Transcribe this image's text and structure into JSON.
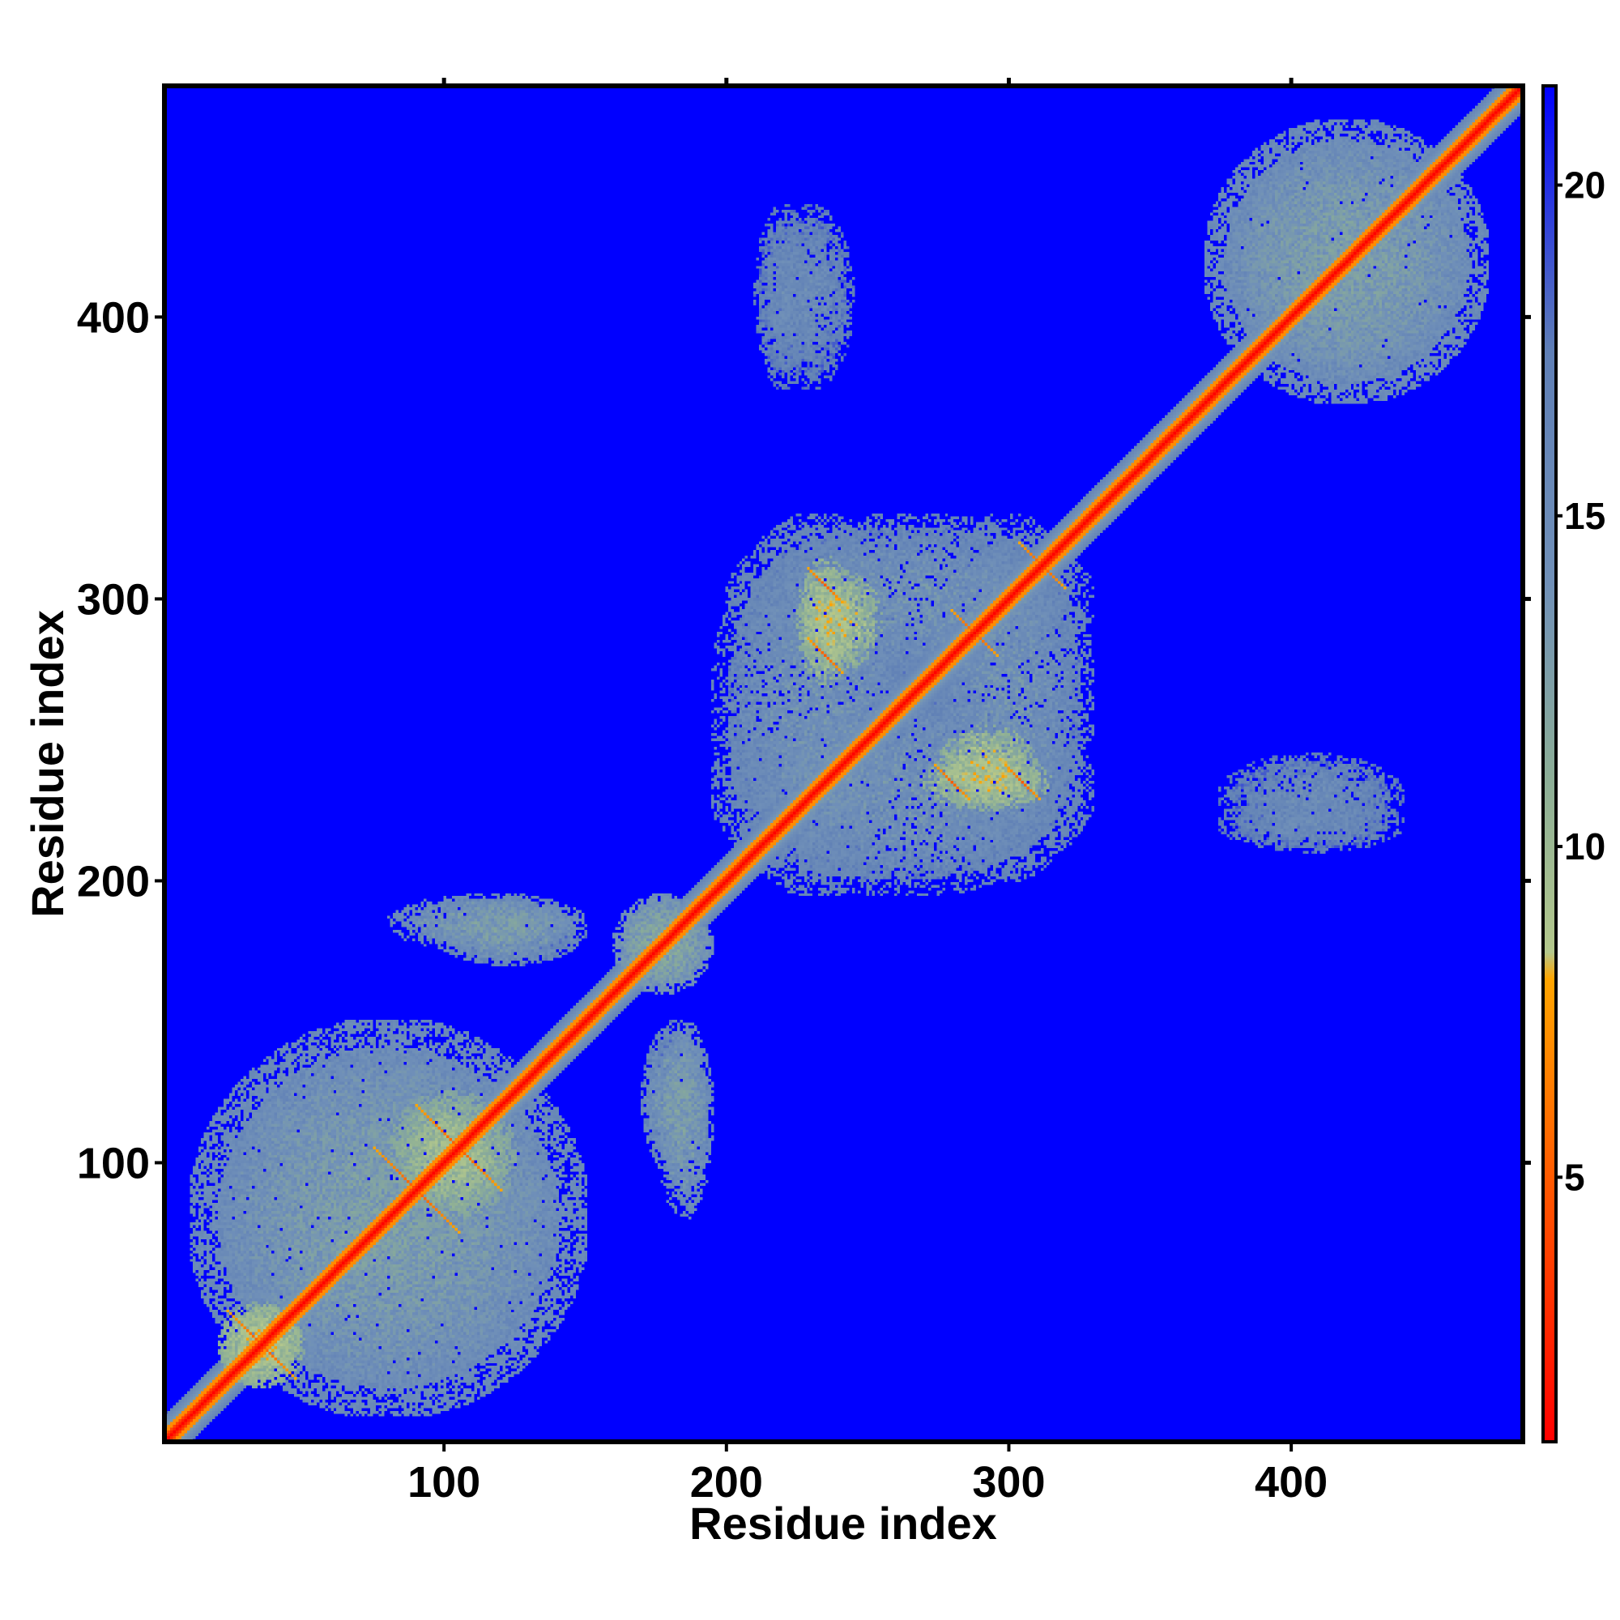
{
  "chart_data": {
    "type": "heatmap",
    "title": "",
    "xlabel": "Residue index",
    "ylabel": "Residue index",
    "xlim": [
      1,
      482
    ],
    "ylim": [
      1,
      482
    ],
    "x_ticks": [
      100,
      200,
      300,
      400
    ],
    "y_ticks": [
      100,
      200,
      300,
      400
    ],
    "x_tick_labels": [
      "100",
      "200",
      "300",
      "400"
    ],
    "y_tick_labels": [
      "100",
      "200",
      "300",
      "400"
    ],
    "grid": false,
    "colorbar": {
      "position": "right",
      "range": [
        1,
        21.5
      ],
      "ticks": [
        5,
        10,
        15,
        20
      ],
      "tick_labels": [
        "5",
        "10",
        "15",
        "20"
      ],
      "stops": [
        {
          "value": 1,
          "color": "#ff0000"
        },
        {
          "value": 5,
          "color": "#ff5a00"
        },
        {
          "value": 8,
          "color": "#ffa500"
        },
        {
          "value": 8.4,
          "color": "#b4c88c"
        },
        {
          "value": 11,
          "color": "#8cae96"
        },
        {
          "value": 14,
          "color": "#7090b8"
        },
        {
          "value": 17.5,
          "color": "#5f7fb6"
        },
        {
          "value": 21.5,
          "color": "#0000ff"
        }
      ]
    },
    "background_value": 21.5,
    "diagonal_value": 1,
    "contact_blocks": [
      {
        "x": [
          10,
          150
        ],
        "y": [
          10,
          150
        ],
        "value": 13
      },
      {
        "x": [
          80,
          125
        ],
        "y": [
          80,
          125
        ],
        "value": 10
      },
      {
        "x": [
          20,
          50
        ],
        "y": [
          20,
          50
        ],
        "value": 9
      },
      {
        "x": [
          160,
          195
        ],
        "y": [
          160,
          195
        ],
        "value": 12
      },
      {
        "x": [
          195,
          270
        ],
        "y": [
          195,
          330
        ],
        "value": 14
      },
      {
        "x": [
          270,
          330
        ],
        "y": [
          200,
          330
        ],
        "value": 14
      },
      {
        "x": [
          225,
          245
        ],
        "y": [
          270,
          315
        ],
        "value": 9
      },
      {
        "x": [
          275,
          310
        ],
        "y": [
          225,
          255
        ],
        "value": 9
      },
      {
        "x": [
          370,
          470
        ],
        "y": [
          370,
          470
        ],
        "value": 13
      },
      {
        "x": [
          375,
          440
        ],
        "y": [
          210,
          230
        ],
        "value": 15
      },
      {
        "x": [
          215,
          245
        ],
        "y": [
          375,
          440
        ],
        "value": 15
      },
      {
        "x": [
          170,
          195
        ],
        "y": [
          95,
          150
        ],
        "value": 13
      },
      {
        "x": [
          80,
          150
        ],
        "y": [
          175,
          195
        ],
        "value": 13
      },
      {
        "x": [
          170,
          195
        ],
        "y": [
          100,
          145
        ],
        "value": 15
      },
      {
        "x": [
          95,
          150
        ],
        "y": [
          170,
          195
        ],
        "value": 15
      }
    ],
    "antidiagonal_strands": [
      {
        "center": [
          35,
          35
        ],
        "half_length": 12
      },
      {
        "center": [
          90,
          90
        ],
        "half_length": 15
      },
      {
        "center": [
          105,
          105
        ],
        "half_length": 15
      },
      {
        "center": [
          288,
          288
        ],
        "half_length": 8
      },
      {
        "center": [
          312,
          312
        ],
        "half_length": 8
      },
      {
        "center": [
          235,
          305
        ],
        "half_length": 6
      },
      {
        "center": [
          305,
          235
        ],
        "half_length": 6
      },
      {
        "center": [
          280,
          235
        ],
        "half_length": 6
      },
      {
        "center": [
          235,
          280
        ],
        "half_length": 6
      }
    ]
  }
}
